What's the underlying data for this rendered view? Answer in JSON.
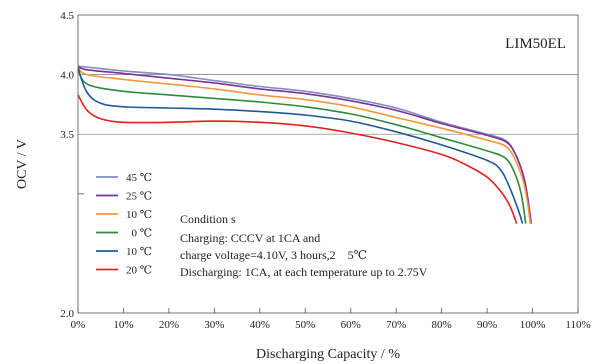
{
  "chart_data": {
    "type": "line",
    "model_label": "LIM50EL",
    "xlabel": "Discharging Capacity / %",
    "ylabel": "OCV / V",
    "xlim": [
      0,
      110
    ],
    "ylim": [
      2.0,
      4.5
    ],
    "x_ticks": [
      0,
      10,
      20,
      30,
      40,
      50,
      60,
      70,
      80,
      90,
      100,
      110
    ],
    "x_tick_labels": [
      "0%",
      "10%",
      "20%",
      "30%",
      "40%",
      "50%",
      "60%",
      "70%",
      "80%",
      "90%",
      "100%",
      "110%"
    ],
    "y_ticks": [
      4.5,
      4.0,
      3.5,
      2.0
    ],
    "y_tick_labels": [
      "4.5",
      "4.0",
      "3.5",
      "2.0"
    ],
    "y_gridlines": [
      4.0,
      3.5
    ],
    "y_minor_tick": 3.0,
    "grid": "horizontal",
    "legend_position": "left",
    "conditions": {
      "title": "Condition s",
      "line1": "Charging: CCCV at 1CA and",
      "line2": "charge voltage=4.10V, 3 hours,2　5℃",
      "line3": "Discharging: 1CA, at each temperature up to 2.75V"
    },
    "series": [
      {
        "name": "45 ℃",
        "color": "#7f8fbf",
        "points": [
          [
            0,
            4.07
          ],
          [
            5,
            4.05
          ],
          [
            10,
            4.03
          ],
          [
            20,
            4.0
          ],
          [
            30,
            3.95
          ],
          [
            40,
            3.9
          ],
          [
            50,
            3.86
          ],
          [
            60,
            3.8
          ],
          [
            70,
            3.72
          ],
          [
            80,
            3.6
          ],
          [
            90,
            3.5
          ],
          [
            94,
            3.45
          ],
          [
            96,
            3.35
          ],
          [
            98,
            3.15
          ],
          [
            99,
            2.95
          ],
          [
            99.5,
            2.75
          ]
        ]
      },
      {
        "name": "25 ℃",
        "color": "#7b3294",
        "points": [
          [
            0,
            4.07
          ],
          [
            2,
            4.04
          ],
          [
            10,
            4.01
          ],
          [
            20,
            3.97
          ],
          [
            30,
            3.93
          ],
          [
            40,
            3.88
          ],
          [
            50,
            3.84
          ],
          [
            60,
            3.78
          ],
          [
            70,
            3.7
          ],
          [
            80,
            3.59
          ],
          [
            90,
            3.49
          ],
          [
            94,
            3.44
          ],
          [
            96,
            3.35
          ],
          [
            98,
            3.15
          ],
          [
            99,
            2.95
          ],
          [
            99.7,
            2.75
          ]
        ]
      },
      {
        "name": "10 ℃",
        "color": "#f7963c",
        "points": [
          [
            0,
            4.06
          ],
          [
            2,
            4.0
          ],
          [
            10,
            3.96
          ],
          [
            20,
            3.92
          ],
          [
            30,
            3.88
          ],
          [
            40,
            3.83
          ],
          [
            50,
            3.79
          ],
          [
            60,
            3.73
          ],
          [
            70,
            3.64
          ],
          [
            80,
            3.55
          ],
          [
            90,
            3.45
          ],
          [
            94,
            3.4
          ],
          [
            96,
            3.3
          ],
          [
            98,
            3.1
          ],
          [
            99,
            2.9
          ],
          [
            99.5,
            2.75
          ]
        ]
      },
      {
        "name": "0 ℃",
        "color": "#2e8b3d",
        "points": [
          [
            0,
            4.06
          ],
          [
            2,
            3.92
          ],
          [
            10,
            3.86
          ],
          [
            20,
            3.83
          ],
          [
            30,
            3.8
          ],
          [
            40,
            3.77
          ],
          [
            50,
            3.73
          ],
          [
            60,
            3.67
          ],
          [
            70,
            3.58
          ],
          [
            80,
            3.47
          ],
          [
            90,
            3.36
          ],
          [
            94,
            3.3
          ],
          [
            96,
            3.18
          ],
          [
            97.5,
            3.0
          ],
          [
            98.5,
            2.75
          ]
        ]
      },
      {
        "name": "10 ℃",
        "color": "#1f5a96",
        "points": [
          [
            0,
            4.05
          ],
          [
            2,
            3.85
          ],
          [
            5,
            3.76
          ],
          [
            10,
            3.73
          ],
          [
            20,
            3.72
          ],
          [
            30,
            3.71
          ],
          [
            40,
            3.69
          ],
          [
            50,
            3.66
          ],
          [
            60,
            3.61
          ],
          [
            70,
            3.52
          ],
          [
            80,
            3.41
          ],
          [
            90,
            3.28
          ],
          [
            93,
            3.2
          ],
          [
            95,
            3.05
          ],
          [
            97,
            2.85
          ],
          [
            97.8,
            2.75
          ]
        ]
      },
      {
        "name": "20 ℃",
        "color": "#e02020",
        "points": [
          [
            0,
            3.83
          ],
          [
            2,
            3.7
          ],
          [
            5,
            3.63
          ],
          [
            10,
            3.6
          ],
          [
            20,
            3.6
          ],
          [
            30,
            3.61
          ],
          [
            40,
            3.6
          ],
          [
            50,
            3.57
          ],
          [
            60,
            3.51
          ],
          [
            70,
            3.43
          ],
          [
            80,
            3.33
          ],
          [
            85,
            3.25
          ],
          [
            90,
            3.14
          ],
          [
            93,
            3.02
          ],
          [
            95,
            2.9
          ],
          [
            96.5,
            2.75
          ]
        ]
      }
    ]
  }
}
